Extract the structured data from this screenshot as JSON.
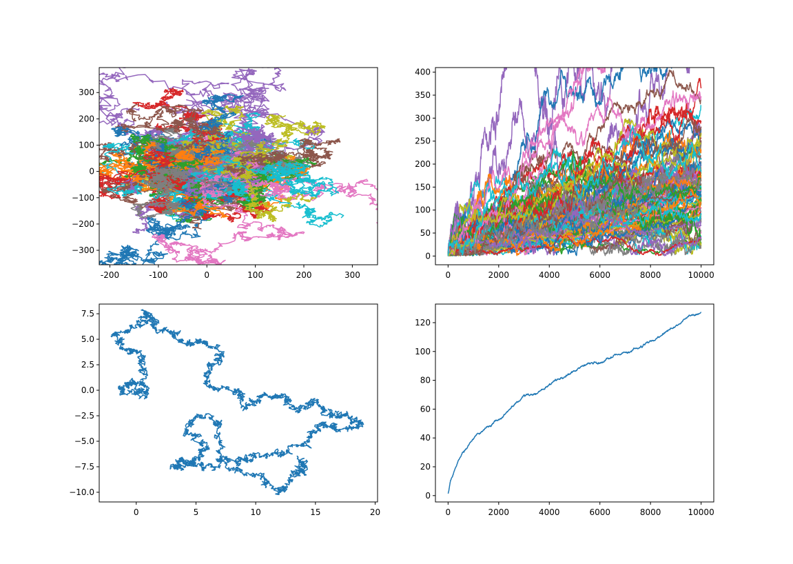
{
  "figure": {
    "background": "#ffffff",
    "palette": [
      "#1f77b4",
      "#ff7f0e",
      "#2ca02c",
      "#d62728",
      "#9467bd",
      "#8c564b",
      "#e377c2",
      "#7f7f7f",
      "#bcbd22",
      "#17becf"
    ]
  },
  "chart_data": [
    {
      "id": "walks2d",
      "type": "line",
      "title": "",
      "xlabel": "",
      "ylabel": "",
      "xlim": [
        -222,
        352
      ],
      "ylim": [
        -355,
        395
      ],
      "xticks": [
        -200,
        -100,
        0,
        100,
        200,
        300
      ],
      "yticks": [
        -300,
        -200,
        -100,
        0,
        100,
        200,
        300
      ],
      "grid": false,
      "series_count": 100,
      "steps": 10000,
      "description": "100 two-dimensional random walks starting at the origin, drawn in cycling default colors",
      "approx_extents": {
        "x": [
          -195,
          330
        ],
        "y": [
          -320,
          360
        ]
      }
    },
    {
      "id": "distances",
      "type": "line",
      "title": "",
      "xlabel": "",
      "ylabel": "",
      "xlim": [
        -500,
        10500
      ],
      "ylim": [
        -19,
        410
      ],
      "xticks": [
        0,
        2000,
        4000,
        6000,
        8000,
        10000
      ],
      "yticks": [
        0,
        50,
        100,
        150,
        200,
        250,
        300,
        350,
        400
      ],
      "grid": false,
      "series_count": 100,
      "description": "Distance from origin versus step for each of the 100 walks",
      "max_distance_approx": 393,
      "final_distance_range_approx": [
        5,
        375
      ]
    },
    {
      "id": "single_walk",
      "type": "line",
      "title": "",
      "xlabel": "",
      "ylabel": "",
      "xlim": [
        -3.1,
        20.2
      ],
      "ylim": [
        -10.95,
        8.45
      ],
      "xticks": [
        0,
        5,
        10,
        15,
        20
      ],
      "yticks": [
        -10.0,
        -7.5,
        -5.0,
        -2.5,
        0.0,
        2.5,
        5.0,
        7.5
      ],
      "ytick_labels": [
        "−10.0",
        "−7.5",
        "−5.0",
        "−2.5",
        "0.0",
        "2.5",
        "5.0",
        "7.5"
      ],
      "grid": false,
      "color": "#1f77b4",
      "waypoints": [
        {
          "x": 1.0,
          "y": 0.0
        },
        {
          "x": -1.5,
          "y": -0.2
        },
        {
          "x": -0.5,
          "y": 1.0
        },
        {
          "x": 0.5,
          "y": -0.4
        },
        {
          "x": 0.7,
          "y": 2.0
        },
        {
          "x": 0.2,
          "y": 3.6
        },
        {
          "x": -1.2,
          "y": 4.0
        },
        {
          "x": -1.7,
          "y": 5.5
        },
        {
          "x": 0.3,
          "y": 6.2
        },
        {
          "x": 0.9,
          "y": 7.6
        },
        {
          "x": 1.5,
          "y": 6.5
        },
        {
          "x": 3.0,
          "y": 5.8
        },
        {
          "x": 4.5,
          "y": 4.5
        },
        {
          "x": 5.5,
          "y": 4.8
        },
        {
          "x": 7.0,
          "y": 3.6
        },
        {
          "x": 6.0,
          "y": 2.0
        },
        {
          "x": 6.2,
          "y": 0.3
        },
        {
          "x": 8.5,
          "y": 0.0
        },
        {
          "x": 9.0,
          "y": -1.5
        },
        {
          "x": 11.0,
          "y": -0.5
        },
        {
          "x": 12.5,
          "y": -0.6
        },
        {
          "x": 13.5,
          "y": -2.0
        },
        {
          "x": 15.0,
          "y": -1.0
        },
        {
          "x": 16.0,
          "y": -2.5
        },
        {
          "x": 17.5,
          "y": -2.4
        },
        {
          "x": 19.0,
          "y": -3.5
        },
        {
          "x": 17.0,
          "y": -3.8
        },
        {
          "x": 15.5,
          "y": -3.0
        },
        {
          "x": 14.0,
          "y": -5.5
        },
        {
          "x": 12.0,
          "y": -6.2
        },
        {
          "x": 10.0,
          "y": -6.5
        },
        {
          "x": 8.5,
          "y": -7.0
        },
        {
          "x": 6.8,
          "y": -6.7
        },
        {
          "x": 7.2,
          "y": -3.2
        },
        {
          "x": 5.0,
          "y": -2.5
        },
        {
          "x": 4.2,
          "y": -4.0
        },
        {
          "x": 6.0,
          "y": -5.5
        },
        {
          "x": 5.0,
          "y": -6.8
        },
        {
          "x": 3.3,
          "y": -7.6
        },
        {
          "x": 3.5,
          "y": -6.8
        },
        {
          "x": 5.5,
          "y": -7.2
        },
        {
          "x": 8.0,
          "y": -7.5
        },
        {
          "x": 10.5,
          "y": -8.5
        },
        {
          "x": 12.0,
          "y": -10.0
        },
        {
          "x": 13.0,
          "y": -8.5
        },
        {
          "x": 14.0,
          "y": -7.7
        },
        {
          "x": 13.6,
          "y": -6.5
        }
      ]
    },
    {
      "id": "mean_distance",
      "type": "line",
      "title": "",
      "xlabel": "",
      "ylabel": "",
      "xlim": [
        -500,
        10500
      ],
      "ylim": [
        -4.4,
        132.9
      ],
      "xticks": [
        0,
        2000,
        4000,
        6000,
        8000,
        10000
      ],
      "yticks": [
        0,
        20,
        40,
        60,
        80,
        100,
        120
      ],
      "grid": false,
      "color": "#1f77b4",
      "description": "Mean distance from origin across all walks versus step",
      "x": [
        0,
        100,
        300,
        500,
        1000,
        1500,
        2000,
        2500,
        3000,
        3500,
        4000,
        4500,
        5000,
        5500,
        6000,
        6500,
        7000,
        7500,
        8000,
        8500,
        9000,
        9500,
        10000
      ],
      "y": [
        1,
        10,
        20,
        27,
        40,
        47,
        53,
        61,
        70,
        71,
        77,
        82,
        86,
        92,
        92,
        97,
        99,
        102,
        107,
        112,
        118,
        124,
        127
      ]
    }
  ]
}
